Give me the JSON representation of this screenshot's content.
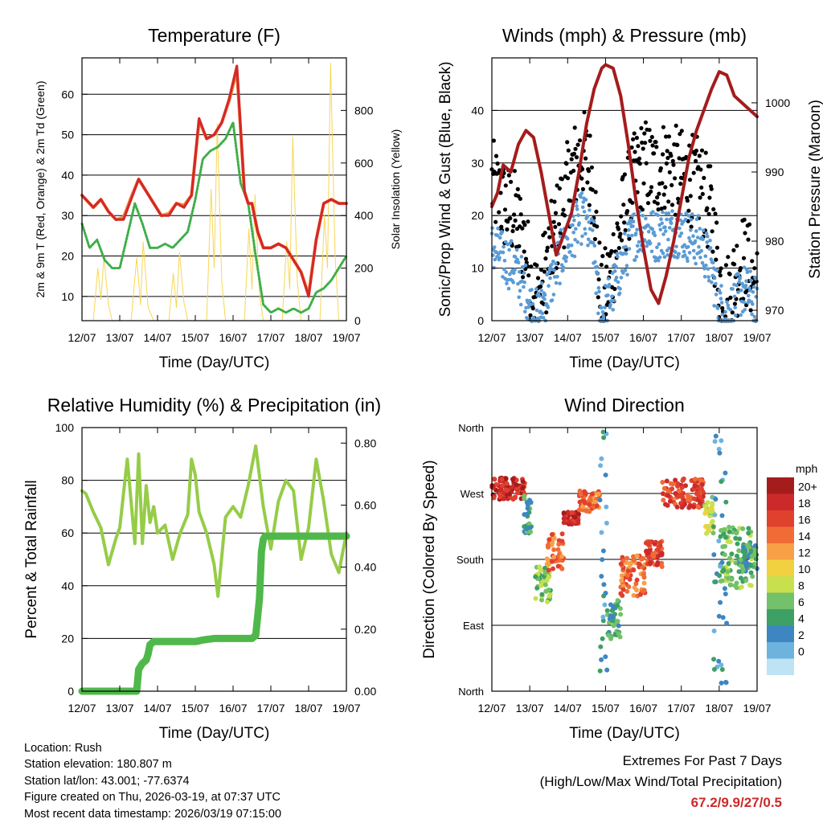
{
  "colors": {
    "red": "#d62728",
    "orange": "#f08a3c",
    "green": "#3fae49",
    "yellow": "#f7d657",
    "black": "#000000",
    "blue": "#5b9bd5",
    "maroon": "#a51c1c",
    "rh": "#96cc48",
    "precip": "#4fb84a"
  },
  "chart_data": [
    {
      "id": "temperature",
      "type": "line",
      "title": "Temperature (F)",
      "xlabel": "Time (Day/UTC)",
      "ylabel": "2m & 9m T (Red, Orange) & 2m Td (Green)",
      "ylabel_right": "Solar Insolation (Yellow)",
      "x_ticks": [
        "12/07",
        "13/07",
        "14/07",
        "15/07",
        "16/07",
        "17/07",
        "18/07",
        "19/07"
      ],
      "xlim": [
        0,
        7
      ],
      "ylim": [
        4,
        69
      ],
      "ylim_right": [
        0,
        1000
      ],
      "y_ticks": [
        10,
        20,
        30,
        40,
        50,
        60
      ],
      "y_ticks_right": [
        0,
        200,
        400,
        600,
        800
      ],
      "grid_y": [
        10,
        20,
        30,
        40,
        50,
        60
      ],
      "series": [
        {
          "name": "2m T",
          "color": "red",
          "axis": "left",
          "x": [
            0,
            0.3,
            0.5,
            0.7,
            0.9,
            1.1,
            1.3,
            1.5,
            1.7,
            1.9,
            2.1,
            2.3,
            2.5,
            2.7,
            2.9,
            3.1,
            3.3,
            3.5,
            3.7,
            3.9,
            4.1,
            4.3,
            4.4,
            4.5,
            4.65,
            4.8,
            5.0,
            5.2,
            5.4,
            5.6,
            5.8,
            6.0,
            6.2,
            6.4,
            6.6,
            6.8,
            7.0
          ],
          "values": [
            35,
            32,
            34,
            31,
            29,
            29,
            34,
            39,
            36,
            33,
            30,
            30,
            33,
            32,
            35,
            54,
            49,
            50,
            53,
            59,
            67,
            36,
            33,
            33,
            26,
            22,
            22,
            23,
            22,
            19,
            16,
            10,
            24,
            33,
            34,
            33,
            33
          ]
        },
        {
          "name": "9m T",
          "color": "orange",
          "axis": "left",
          "x": [
            0,
            0.3,
            0.5,
            0.7,
            0.9,
            1.1,
            1.3,
            1.5,
            1.7,
            1.9,
            2.1,
            2.3,
            2.5,
            2.7,
            2.9,
            3.1,
            3.3,
            3.5,
            3.7,
            3.9,
            4.1,
            4.3,
            4.4,
            4.5,
            4.65,
            4.8,
            5.0,
            5.2,
            5.4,
            5.6,
            5.8,
            6.0,
            6.2,
            6.4,
            6.6,
            6.8,
            7.0
          ],
          "values": [
            35,
            32,
            34,
            31,
            29,
            29.5,
            34.5,
            39,
            36,
            33,
            30,
            30.5,
            33,
            32.5,
            35,
            53.5,
            49,
            50,
            53,
            58.5,
            66,
            36,
            33,
            33,
            26,
            22,
            22,
            23,
            22,
            19,
            16,
            10.5,
            24,
            33,
            34,
            33,
            33
          ]
        },
        {
          "name": "2m Td",
          "color": "green",
          "axis": "left",
          "x": [
            0,
            0.2,
            0.4,
            0.6,
            0.8,
            1.0,
            1.2,
            1.4,
            1.6,
            1.8,
            2.0,
            2.2,
            2.4,
            2.6,
            2.8,
            3.0,
            3.2,
            3.4,
            3.6,
            3.8,
            4.0,
            4.2,
            4.4,
            4.6,
            4.8,
            5.0,
            5.2,
            5.4,
            5.6,
            5.8,
            6.0,
            6.2,
            6.4,
            6.6,
            6.8,
            7.0
          ],
          "values": [
            28,
            22,
            24,
            19,
            17,
            17,
            25,
            33,
            28,
            22,
            22,
            23,
            22,
            24,
            26,
            34,
            44,
            46,
            47,
            49,
            53,
            38,
            33,
            20,
            8,
            6,
            7,
            6,
            7,
            6,
            7,
            11,
            12,
            14,
            17,
            20
          ]
        },
        {
          "name": "Solar Insolation",
          "color": "yellow",
          "axis": "right",
          "x": [
            0,
            0.3,
            0.42,
            0.5,
            0.58,
            0.7,
            0.8,
            1.3,
            1.45,
            1.55,
            1.62,
            1.75,
            1.9,
            2.3,
            2.42,
            2.5,
            2.58,
            2.7,
            2.8,
            3.3,
            3.42,
            3.5,
            3.58,
            3.7,
            3.8,
            4.3,
            4.42,
            4.5,
            4.58,
            4.7,
            4.8,
            5.3,
            5.42,
            5.5,
            5.58,
            5.7,
            5.8,
            6.3,
            6.42,
            6.5,
            6.58,
            6.7,
            6.8,
            7.0
          ],
          "values": [
            0,
            0,
            200,
            80,
            240,
            60,
            0,
            0,
            240,
            60,
            300,
            50,
            0,
            0,
            180,
            50,
            260,
            70,
            0,
            0,
            500,
            200,
            750,
            150,
            0,
            0,
            350,
            120,
            480,
            100,
            0,
            0,
            300,
            120,
            700,
            150,
            0,
            0,
            400,
            200,
            980,
            250,
            0,
            0
          ]
        }
      ]
    },
    {
      "id": "winds",
      "type": "line",
      "title": "Winds (mph) & Pressure (mb)",
      "xlabel": "Time (Day/UTC)",
      "ylabel": "Sonic/Prop Wind & Gust (Blue, Black)",
      "ylabel_right": "Station Pressure (Maroon)",
      "x_ticks": [
        "12/07",
        "13/07",
        "14/07",
        "15/07",
        "16/07",
        "17/07",
        "18/07",
        "19/07"
      ],
      "xlim": [
        0,
        7
      ],
      "ylim": [
        0,
        50
      ],
      "ylim_right": [
        968.5,
        1006.5
      ],
      "y_ticks": [
        0,
        10,
        20,
        30,
        40
      ],
      "y_ticks_right": [
        970,
        980,
        990,
        1000
      ],
      "grid_y": [
        10,
        20,
        30,
        40
      ],
      "series": [
        {
          "name": "Gust",
          "color": "black",
          "axis": "left",
          "x": [
            0,
            0.3,
            0.6,
            0.9,
            1.0,
            1.2,
            1.5,
            1.8,
            2.1,
            2.4,
            2.7,
            2.8,
            2.9,
            3.1,
            3.4,
            3.7,
            4.0,
            4.3,
            4.6,
            4.9,
            5.2,
            5.5,
            5.8,
            6.0,
            6.2,
            6.4,
            6.6,
            6.8,
            7.0
          ],
          "values": [
            26,
            22,
            20,
            14,
            8,
            4,
            12,
            20,
            28,
            32,
            26,
            10,
            3,
            8,
            18,
            26,
            30,
            28,
            30,
            28,
            27,
            26,
            20,
            8,
            4,
            8,
            12,
            10,
            6
          ]
        },
        {
          "name": "Wind",
          "color": "blue",
          "axis": "left",
          "x": [
            0,
            0.3,
            0.6,
            0.9,
            1.0,
            1.2,
            1.5,
            1.8,
            2.1,
            2.4,
            2.7,
            2.8,
            2.9,
            3.1,
            3.4,
            3.7,
            4.0,
            4.3,
            4.6,
            4.9,
            5.2,
            5.5,
            5.8,
            6.0,
            6.2,
            6.4,
            6.6,
            6.8,
            7.0
          ],
          "values": [
            14,
            12,
            10,
            6,
            3,
            1,
            6,
            12,
            16,
            20,
            14,
            4,
            1,
            4,
            10,
            16,
            18,
            16,
            17,
            17,
            16,
            15,
            10,
            3,
            1,
            3,
            6,
            5,
            3
          ]
        },
        {
          "name": "Station Pressure",
          "color": "maroon",
          "axis": "right",
          "x": [
            0,
            0.15,
            0.3,
            0.5,
            0.7,
            0.9,
            1.1,
            1.3,
            1.5,
            1.7,
            1.9,
            2.1,
            2.3,
            2.5,
            2.7,
            2.9,
            3.0,
            3.2,
            3.4,
            3.6,
            3.8,
            4.0,
            4.2,
            4.4,
            4.6,
            4.8,
            5.0,
            5.2,
            5.4,
            5.6,
            5.8,
            6.0,
            6.2,
            6.4,
            6.6,
            6.8,
            7.0
          ],
          "values": [
            985,
            987,
            991,
            990,
            994,
            996,
            995,
            990,
            984,
            978,
            981,
            984,
            990,
            997,
            1002,
            1005,
            1005.5,
            1005,
            1001,
            994,
            986,
            979,
            973,
            971,
            975,
            980,
            986,
            992,
            996,
            999,
            1002,
            1004.5,
            1004,
            1001,
            1000,
            999,
            998
          ]
        }
      ]
    },
    {
      "id": "humidity",
      "type": "line",
      "title": "Relative Humidity (%) & Precipitation (in)",
      "xlabel": "Time (Day/UTC)",
      "ylabel": "Percent & Total Rainfall",
      "x_ticks": [
        "12/07",
        "13/07",
        "14/07",
        "15/07",
        "16/07",
        "17/07",
        "18/07",
        "19/07"
      ],
      "xlim": [
        0,
        7
      ],
      "ylim": [
        0,
        100
      ],
      "ylim_right": [
        0,
        0.85
      ],
      "y_ticks": [
        0,
        20,
        40,
        60,
        80,
        100
      ],
      "y_ticks_right": [
        "0.00",
        "0.20",
        "0.40",
        "0.60",
        "0.80"
      ],
      "grid_y": [
        20,
        40,
        60,
        80
      ],
      "series": [
        {
          "name": "Relative Humidity",
          "color": "rh",
          "axis": "left",
          "x": [
            0,
            0.1,
            0.3,
            0.5,
            0.7,
            0.9,
            1.0,
            1.2,
            1.4,
            1.5,
            1.6,
            1.7,
            1.8,
            1.9,
            2.0,
            2.2,
            2.4,
            2.6,
            2.8,
            2.9,
            3.0,
            3.1,
            3.3,
            3.5,
            3.6,
            3.8,
            4.0,
            4.2,
            4.4,
            4.6,
            4.8,
            5.0,
            5.2,
            5.4,
            5.6,
            5.8,
            6.0,
            6.2,
            6.4,
            6.6,
            6.8,
            7.0
          ],
          "values": [
            76,
            75,
            68,
            62,
            48,
            58,
            62,
            88,
            56,
            90,
            56,
            78,
            64,
            70,
            60,
            63,
            50,
            60,
            67,
            88,
            82,
            68,
            60,
            48,
            36,
            66,
            70,
            66,
            78,
            93,
            70,
            54,
            72,
            80,
            76,
            50,
            62,
            88,
            72,
            52,
            45,
            60
          ]
        },
        {
          "name": "Total Precipitation",
          "color": "precip",
          "axis": "right",
          "x": [
            0,
            1.45,
            1.5,
            1.6,
            1.7,
            1.75,
            1.8,
            1.9,
            2.0,
            2.5,
            3.0,
            3.2,
            3.5,
            4.0,
            4.5,
            4.6,
            4.7,
            4.75,
            4.8,
            4.85,
            5.0,
            6.0,
            7.0
          ],
          "values": [
            0.0,
            0.0,
            0.07,
            0.09,
            0.1,
            0.12,
            0.15,
            0.16,
            0.16,
            0.16,
            0.16,
            0.165,
            0.17,
            0.17,
            0.17,
            0.18,
            0.3,
            0.45,
            0.49,
            0.5,
            0.5,
            0.5,
            0.5
          ]
        }
      ]
    },
    {
      "id": "direction",
      "type": "scatter",
      "title": "Wind Direction",
      "xlabel": "Time (Day/UTC)",
      "ylabel": "Direction (Colored By Speed)",
      "x_ticks": [
        "12/07",
        "13/07",
        "14/07",
        "15/07",
        "16/07",
        "17/07",
        "18/07",
        "19/07"
      ],
      "xlim": [
        0,
        7
      ],
      "ylim": [
        0,
        360
      ],
      "y_ticks": [
        {
          "value": 0,
          "label": "North"
        },
        {
          "value": 90,
          "label": "East"
        },
        {
          "value": 180,
          "label": "South"
        },
        {
          "value": 270,
          "label": "West"
        },
        {
          "value": 360,
          "label": "North"
        }
      ],
      "grid_y": [
        90,
        180,
        270
      ],
      "legend": {
        "title": "mph",
        "labels": [
          "20+",
          "18",
          "16",
          "14",
          "12",
          "10",
          "8",
          "6",
          "4",
          "2",
          "0"
        ],
        "colors": [
          "#a51c1c",
          "#cc2a2a",
          "#e0402e",
          "#f06b35",
          "#f8a046",
          "#f1d13f",
          "#c8e04d",
          "#73c16a",
          "#3da064",
          "#3d86c2",
          "#6eb3de",
          "#bde3f5"
        ],
        "placement": "right"
      },
      "segments": [
        {
          "x0": 0.0,
          "x1": 0.9,
          "dir_lo": 262,
          "dir_hi": 292,
          "speed": 18
        },
        {
          "x0": 0.85,
          "x1": 1.05,
          "dir_lo": 215,
          "dir_hi": 270,
          "speed": 4
        },
        {
          "x0": 1.15,
          "x1": 1.55,
          "dir_lo": 120,
          "dir_hi": 170,
          "speed": 6
        },
        {
          "x0": 1.45,
          "x1": 1.9,
          "dir_lo": 165,
          "dir_hi": 215,
          "speed": 14
        },
        {
          "x0": 1.9,
          "x1": 2.3,
          "dir_lo": 228,
          "dir_hi": 245,
          "speed": 18
        },
        {
          "x0": 2.3,
          "x1": 2.85,
          "dir_lo": 245,
          "dir_hi": 275,
          "speed": 14
        },
        {
          "x0": 2.85,
          "x1": 3.05,
          "dir_lo": 20,
          "dir_hi": 355,
          "speed": 2
        },
        {
          "x0": 3.05,
          "x1": 3.4,
          "dir_lo": 70,
          "dir_hi": 125,
          "speed": 4
        },
        {
          "x0": 3.4,
          "x1": 4.05,
          "dir_lo": 130,
          "dir_hi": 185,
          "speed": 14
        },
        {
          "x0": 4.05,
          "x1": 4.5,
          "dir_lo": 170,
          "dir_hi": 205,
          "speed": 16
        },
        {
          "x0": 4.5,
          "x1": 5.6,
          "dir_lo": 250,
          "dir_hi": 290,
          "speed": 16
        },
        {
          "x0": 5.6,
          "x1": 5.85,
          "dir_lo": 215,
          "dir_hi": 265,
          "speed": 8
        },
        {
          "x0": 5.85,
          "x1": 6.2,
          "dir_lo": 10,
          "dir_hi": 350,
          "speed": 2
        },
        {
          "x0": 6.0,
          "x1": 6.9,
          "dir_lo": 140,
          "dir_hi": 225,
          "speed": 6
        },
        {
          "x0": 6.5,
          "x1": 7.0,
          "dir_lo": 160,
          "dir_hi": 200,
          "speed": 4
        }
      ]
    }
  ],
  "info": {
    "location": "Location: Rush",
    "elevation": "Station elevation: 180.807 m",
    "latlon": "Station lat/lon: 43.001; -77.6374",
    "created": "Figure created on Thu, 2026-03-19, at 07:37 UTC",
    "recent": "Most recent data timestamp: 2026/03/19 07:15:00"
  },
  "extremes": {
    "title": "Extremes For Past 7 Days",
    "subtitle": "(High/Low/Max Wind/Total Precipitation)",
    "values": "67.2/9.9/27/0.5"
  }
}
